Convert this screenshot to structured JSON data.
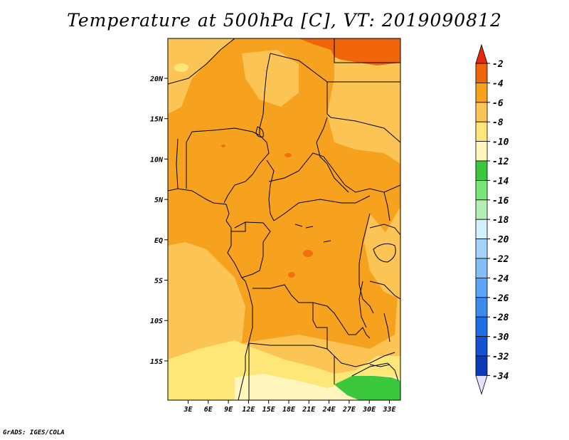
{
  "title": "Temperature at 500hPa [C], VT: 2019090812",
  "credit": "GrADS: IGES/COLA",
  "lat_ticks": [
    "20N",
    "15N",
    "10N",
    "5N",
    "EQ",
    "5S",
    "10S",
    "15S"
  ],
  "lon_ticks": [
    "3E",
    "6E",
    "9E",
    "12E",
    "15E",
    "18E",
    "21E",
    "24E",
    "27E",
    "30E",
    "33E"
  ],
  "colorbar": {
    "labels": [
      "-2",
      "-4",
      "-6",
      "-8",
      "-10",
      "-12",
      "-14",
      "-16",
      "-18",
      "-20",
      "-22",
      "-24",
      "-26",
      "-28",
      "-30",
      "-32",
      "-34"
    ],
    "colors": [
      "#e8e0ff",
      "#160482",
      "#0a3ab4",
      "#1452d2",
      "#1e6ee6",
      "#3c8cf0",
      "#5aa5f5",
      "#82bef8",
      "#a5d2fa",
      "#d2f0ff",
      "#b4f0b4",
      "#78e678",
      "#3cc83c",
      "#fff6be",
      "#ffe678",
      "#fcc455",
      "#f7a21e",
      "#f0640a",
      "#e8280a"
    ]
  },
  "colors": {
    "c_m2": "#f0640a",
    "c_m4": "#f7a21e",
    "c_m6": "#fcc455",
    "c_m8": "#ffe678",
    "c_m10": "#fff6be",
    "c_m14": "#3cc83c"
  }
}
